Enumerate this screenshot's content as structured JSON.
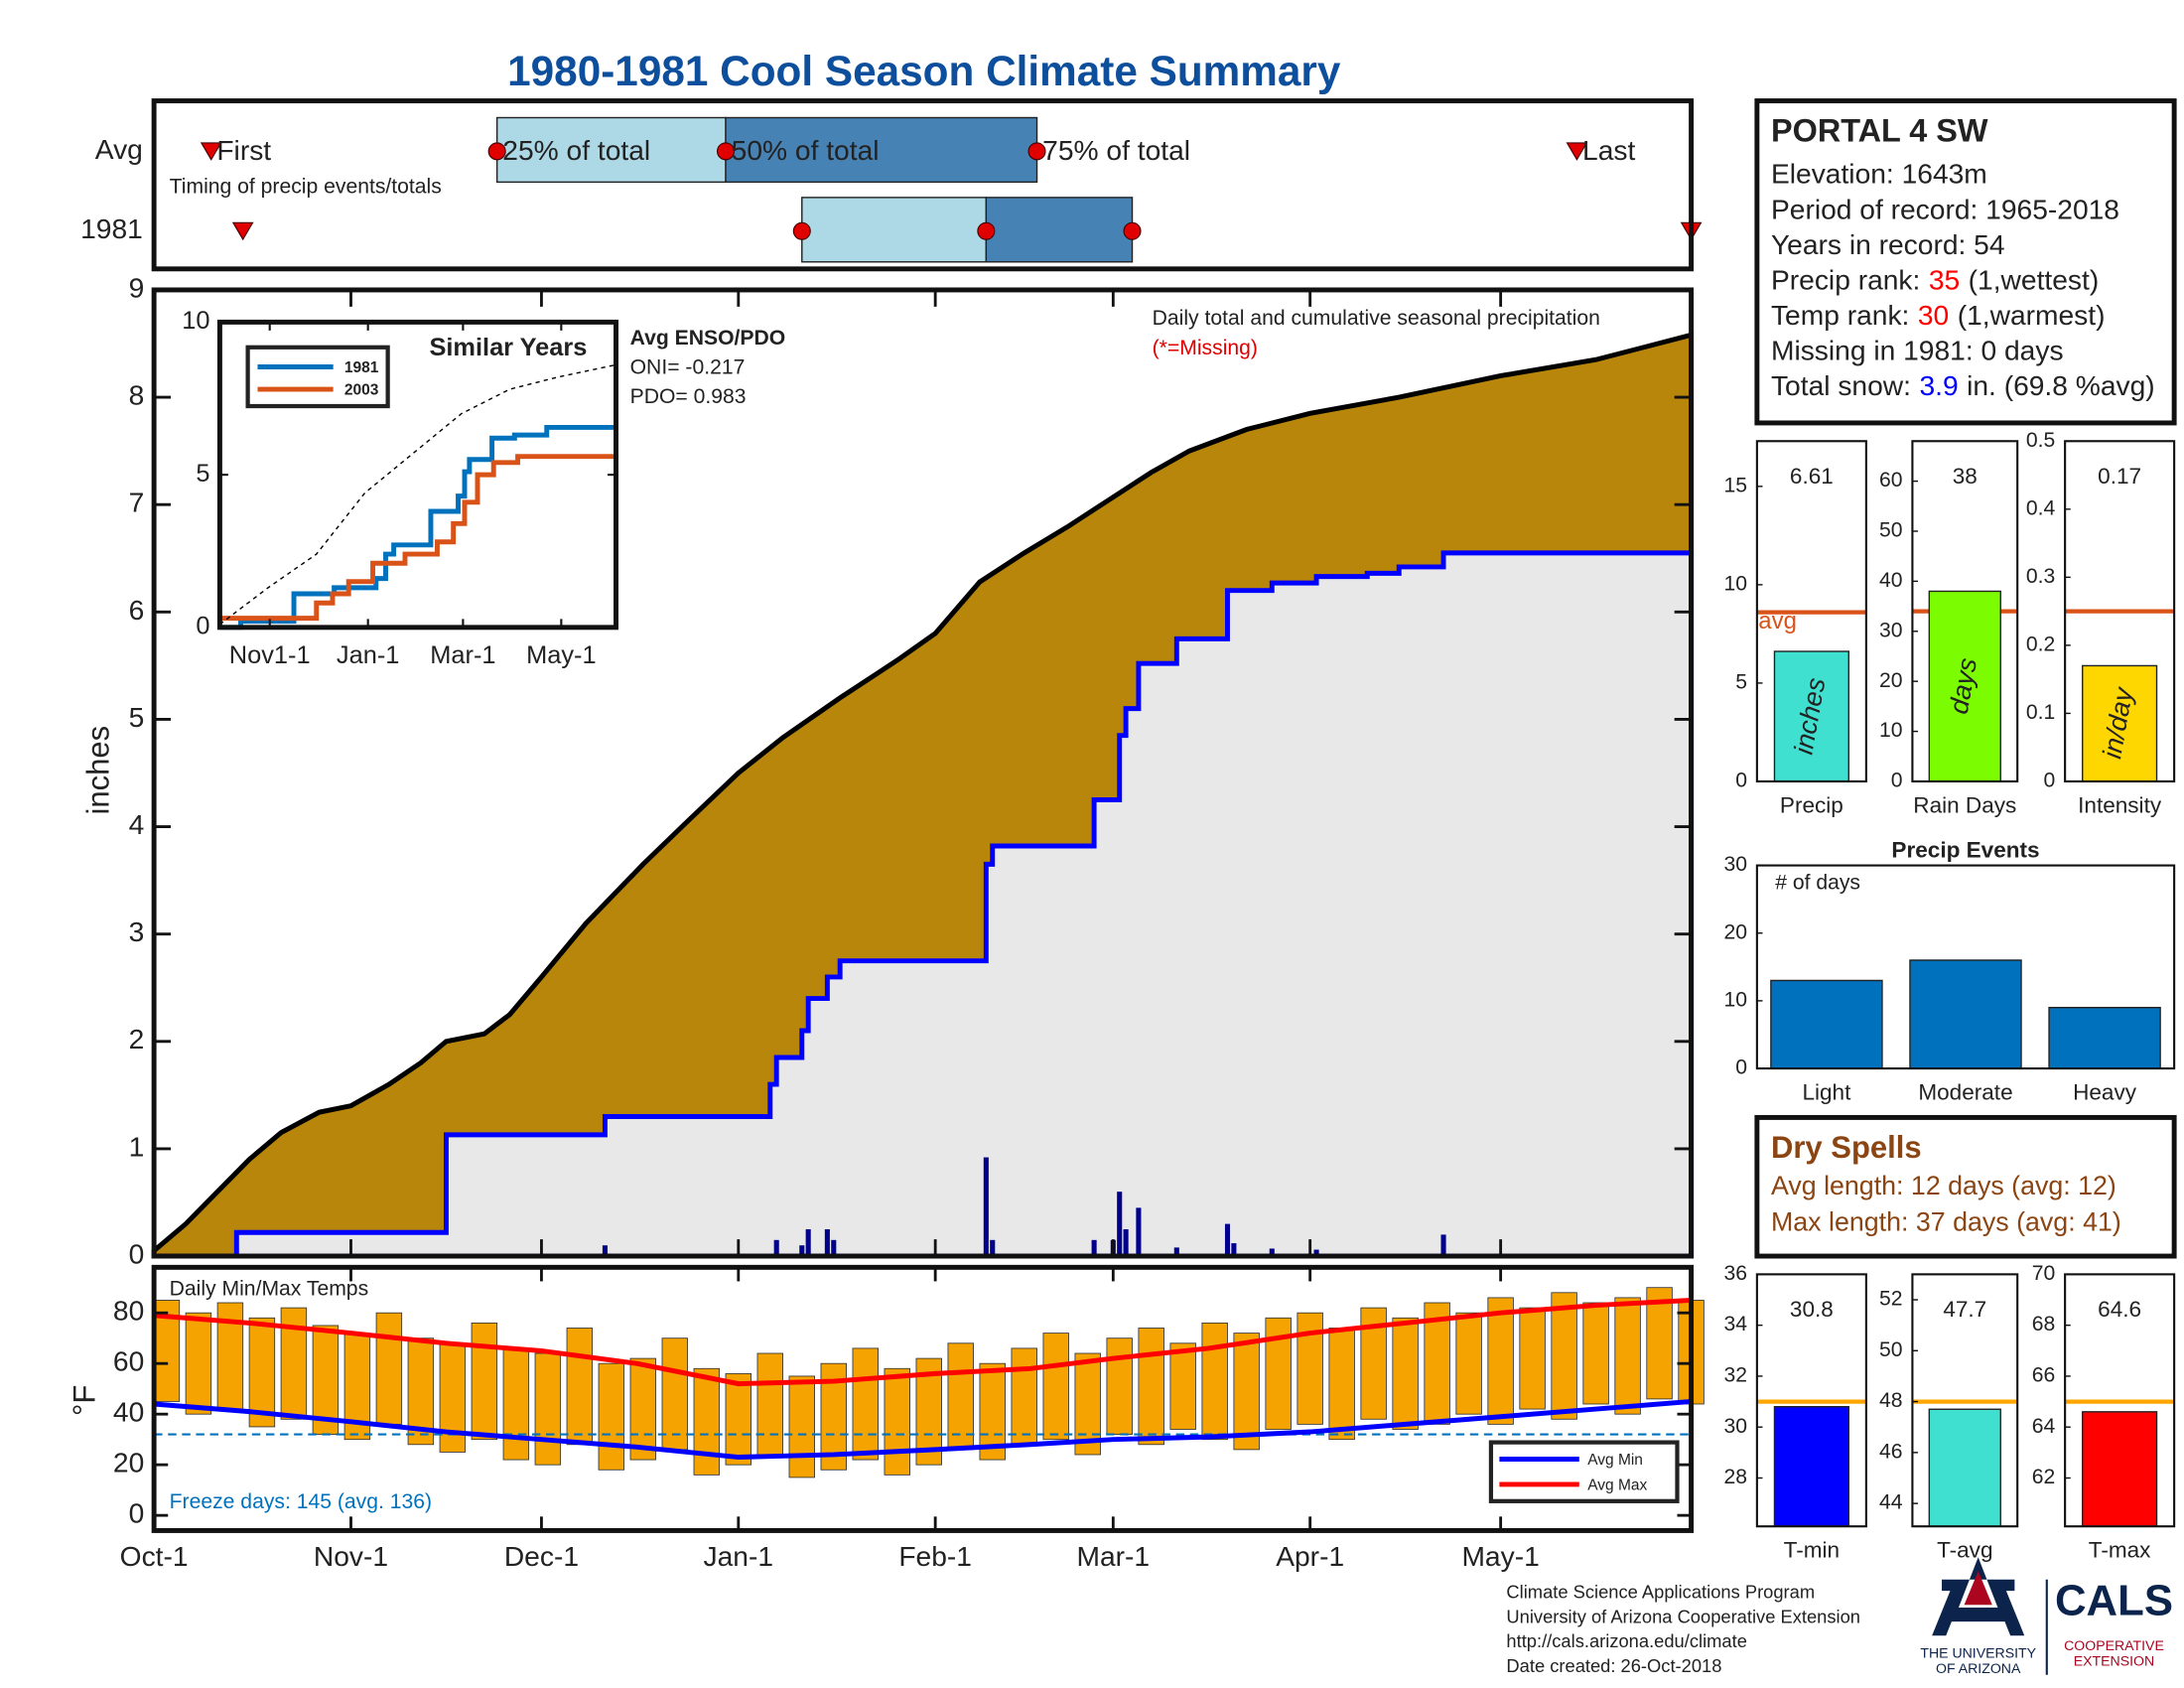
{
  "title": "1980-1981 Cool Season Climate Summary",
  "chart_data": [
    {
      "type": "timing",
      "xlim": [
        0,
        242
      ],
      "rows": [
        {
          "label": "Avg",
          "values": [
            9,
            54,
            90,
            139,
            224
          ]
        },
        {
          "label": "1981",
          "values": [
            14,
            102,
            131,
            154,
            242
          ]
        }
      ],
      "marker_labels": [
        "First",
        "25% of total",
        "50% of total",
        "75% of total",
        "Last"
      ],
      "note": "Timing of precip events/totals",
      "colors": [
        "#add8e6",
        "#4682b4"
      ],
      "marker_color": "#e00000"
    },
    {
      "type": "area",
      "xlim": [
        0,
        242
      ],
      "ylim": [
        0,
        9
      ],
      "yticks": [
        0,
        1,
        2,
        3,
        4,
        5,
        6,
        7,
        8,
        9
      ],
      "ylabel": "inches",
      "annotation": "Daily total and cumulative seasonal precipitation",
      "missing_note": "(*=Missing)",
      "series": [
        {
          "x": [
            0,
            5,
            10,
            15,
            20,
            26,
            31,
            37,
            42,
            46,
            52,
            56,
            61,
            68,
            77,
            84,
            92,
            99,
            108,
            117,
            123,
            130,
            137,
            144,
            151,
            157,
            163,
            172,
            182,
            196,
            212,
            227,
            242
          ],
          "values": [
            0.05,
            0.3,
            0.6,
            0.9,
            1.15,
            1.34,
            1.4,
            1.6,
            1.8,
            2.0,
            2.07,
            2.25,
            2.6,
            3.1,
            3.65,
            4.05,
            4.5,
            4.83,
            5.2,
            5.55,
            5.8,
            6.28,
            6.55,
            6.8,
            7.07,
            7.3,
            7.5,
            7.7,
            7.85,
            8.0,
            8.2,
            8.35,
            8.58
          ],
          "color": "#000000",
          "fill": "#b8860b"
        },
        {
          "x": [
            0,
            13,
            46,
            71,
            97,
            98,
            102,
            103,
            106,
            108,
            131,
            132,
            148,
            152,
            153,
            155,
            161,
            169,
            176,
            183,
            191,
            196,
            203,
            242
          ],
          "values": [
            0,
            0.22,
            1.13,
            1.3,
            1.6,
            1.85,
            2.1,
            2.4,
            2.6,
            2.75,
            3.65,
            3.82,
            4.25,
            4.85,
            5.1,
            5.52,
            5.75,
            6.2,
            6.27,
            6.33,
            6.36,
            6.42,
            6.55,
            6.55
          ],
          "color": "#0000ff",
          "fill": "#e8e8e8",
          "step": true
        }
      ],
      "daily": {
        "x": [
          71,
          98,
          102,
          103,
          106,
          107,
          131,
          132,
          148,
          151,
          152,
          153,
          155,
          161,
          169,
          170,
          176,
          183,
          203
        ],
        "values": [
          0.1,
          0.15,
          0.1,
          0.25,
          0.25,
          0.15,
          0.92,
          0.15,
          0.15,
          0.15,
          0.6,
          0.25,
          0.45,
          0.08,
          0.3,
          0.12,
          0.07,
          0.06,
          0.2
        ],
        "color": "#00008b"
      }
    },
    {
      "type": "line",
      "title": "Similar Years",
      "xlim": [
        0,
        246
      ],
      "ylim": [
        0,
        10
      ],
      "yticks": [
        0,
        5,
        10
      ],
      "xticks": [
        {
          "value": 31,
          "label": "Nov1-1"
        },
        {
          "value": 92,
          "label": "Jan-1"
        },
        {
          "value": 151,
          "label": "Mar-1"
        },
        {
          "value": 212,
          "label": "May-1"
        }
      ],
      "series": [
        {
          "name": "1981",
          "color": "#0072bd",
          "step": true,
          "x": [
            0,
            13,
            46,
            71,
            97,
            103,
            108,
            131,
            148,
            152,
            155,
            169,
            183,
            203,
            246
          ],
          "values": [
            0,
            0.2,
            1.1,
            1.3,
            1.6,
            2.4,
            2.7,
            3.8,
            4.3,
            5.1,
            5.5,
            6.2,
            6.3,
            6.55,
            6.55
          ]
        },
        {
          "name": "2003",
          "color": "#d95319",
          "step": true,
          "x": [
            0,
            55,
            60,
            70,
            80,
            95,
            115,
            135,
            145,
            152,
            160,
            170,
            185,
            246
          ],
          "values": [
            0.3,
            0.3,
            0.8,
            1.1,
            1.5,
            2.1,
            2.4,
            2.8,
            3.4,
            4.1,
            5.0,
            5.4,
            5.6,
            5.64
          ]
        },
        {
          "color": "#000000",
          "dash": true,
          "x": [
            0,
            30,
            60,
            90,
            120,
            150,
            180,
            210,
            246
          ],
          "values": [
            0.1,
            1.3,
            2.4,
            4.4,
            5.7,
            7.0,
            7.8,
            8.2,
            8.6
          ]
        }
      ],
      "notes": [
        "Avg ENSO/PDO",
        "ONI= -0.217",
        "PDO= 0.983"
      ]
    },
    {
      "type": "range",
      "title": "Daily Min/Max Temps",
      "ylabel": "°F",
      "xlim": [
        0,
        242
      ],
      "ylim": [
        -6,
        98
      ],
      "yticks": [
        0,
        20,
        40,
        60,
        80
      ],
      "xticks": [
        {
          "value": 0,
          "label": "Oct-1"
        },
        {
          "value": 31,
          "label": "Nov-1"
        },
        {
          "value": 61,
          "label": "Dec-1"
        },
        {
          "value": 92,
          "label": "Jan-1"
        },
        {
          "value": 123,
          "label": "Feb-1"
        },
        {
          "value": 151,
          "label": "Mar-1"
        },
        {
          "value": 182,
          "label": "Apr-1"
        },
        {
          "value": 212,
          "label": "May-1"
        }
      ],
      "x": [
        0,
        5,
        10,
        15,
        20,
        25,
        30,
        35,
        40,
        45,
        50,
        55,
        60,
        65,
        70,
        75,
        80,
        85,
        90,
        95,
        100,
        105,
        110,
        115,
        120,
        125,
        130,
        135,
        140,
        145,
        150,
        155,
        160,
        165,
        170,
        175,
        180,
        185,
        190,
        195,
        200,
        205,
        210,
        215,
        220,
        225,
        230,
        235,
        240
      ],
      "high": [
        85,
        80,
        84,
        78,
        82,
        75,
        72,
        80,
        70,
        68,
        76,
        66,
        64,
        74,
        60,
        62,
        70,
        58,
        56,
        64,
        55,
        60,
        66,
        58,
        62,
        68,
        60,
        66,
        72,
        64,
        70,
        74,
        68,
        76,
        72,
        78,
        80,
        74,
        82,
        78,
        84,
        80,
        86,
        82,
        88,
        84,
        86,
        90,
        85
      ],
      "low": [
        45,
        40,
        42,
        35,
        38,
        32,
        30,
        36,
        28,
        25,
        30,
        22,
        20,
        28,
        18,
        22,
        26,
        16,
        20,
        24,
        15,
        18,
        22,
        16,
        20,
        26,
        22,
        28,
        30,
        24,
        32,
        28,
        34,
        30,
        26,
        34,
        36,
        30,
        38,
        34,
        36,
        40,
        36,
        42,
        38,
        44,
        40,
        46,
        44
      ],
      "color": "#f5a300",
      "series": [
        {
          "name": "Avg Min",
          "color": "#0000ff",
          "x": [
            0,
            15,
            31,
            46,
            61,
            76,
            92,
            107,
            123,
            138,
            151,
            166,
            182,
            197,
            212,
            227,
            242
          ],
          "values": [
            44,
            41,
            37,
            33,
            30,
            27,
            23,
            24,
            26,
            28,
            30,
            31,
            33,
            36,
            39,
            42,
            45
          ]
        },
        {
          "name": "Avg Max",
          "color": "#ff0000",
          "x": [
            0,
            15,
            31,
            46,
            61,
            76,
            92,
            107,
            123,
            138,
            151,
            166,
            182,
            197,
            212,
            227,
            242
          ],
          "values": [
            79,
            76,
            72,
            68,
            65,
            60,
            52,
            53,
            56,
            58,
            62,
            66,
            72,
            76,
            80,
            83,
            85
          ]
        }
      ],
      "freeze": {
        "value": 32,
        "label": "Freeze days: 145 (avg. 136)",
        "color": "#0072bd"
      }
    },
    {
      "type": "bar",
      "categories": [
        "Precip"
      ],
      "values": [
        6.61
      ],
      "color": "#40e0d0",
      "bar_label": "inches",
      "print_values": true,
      "avg": 8.6,
      "avg_label": "avg",
      "avg_color": "#d95319",
      "ylim": [
        0,
        17.3
      ],
      "yticks": [
        0,
        5,
        10,
        15
      ]
    },
    {
      "type": "bar",
      "categories": [
        "Rain Days"
      ],
      "values": [
        38
      ],
      "color": "#7cfc00",
      "bar_label": "days",
      "print_values": true,
      "avg": 34,
      "avg_color": "#d95319",
      "ylim": [
        0,
        68
      ],
      "yticks": [
        0,
        10,
        20,
        30,
        40,
        50,
        60
      ]
    },
    {
      "type": "bar",
      "categories": [
        "Intensity"
      ],
      "values": [
        0.17
      ],
      "color": "#ffd700",
      "bar_label": "in/day",
      "print_values": true,
      "avg": 0.25,
      "avg_color": "#d95319",
      "ylim": [
        0,
        0.5
      ],
      "yticks": [
        0,
        0.1,
        0.2,
        0.3,
        0.4,
        0.5
      ]
    },
    {
      "type": "bar",
      "title": "Precip Events",
      "note": "# of days",
      "categories": [
        "Light",
        "Moderate",
        "Heavy"
      ],
      "values": [
        13,
        16,
        9
      ],
      "color": "#0071bc",
      "ylim": [
        0,
        30
      ],
      "yticks": [
        0,
        10,
        20,
        30
      ]
    },
    {
      "type": "bar",
      "categories": [
        "T-min"
      ],
      "values": [
        30.8
      ],
      "color": "#0000ff",
      "print_values": true,
      "avg": 31,
      "avg_color": "#ffa500",
      "ylim": [
        26.1,
        36
      ],
      "yticks": [
        28,
        30,
        32,
        34,
        36
      ]
    },
    {
      "type": "bar",
      "categories": [
        "T-avg"
      ],
      "values": [
        47.7
      ],
      "color": "#40e0d0",
      "print_values": true,
      "avg": 48,
      "avg_color": "#ffa500",
      "ylim": [
        43.1,
        53
      ],
      "yticks": [
        44,
        46,
        48,
        50,
        52
      ]
    },
    {
      "type": "bar",
      "categories": [
        "T-max"
      ],
      "values": [
        64.6
      ],
      "color": "#ff0000",
      "print_values": true,
      "avg": 65,
      "avg_color": "#ffa500",
      "ylim": [
        60.1,
        70
      ],
      "yticks": [
        62,
        64,
        66,
        68,
        70
      ]
    }
  ],
  "station": {
    "name": "PORTAL 4 SW",
    "lines": [
      {
        "parts": [
          "Elevation: 1643m"
        ]
      },
      {
        "parts": [
          "Period of record: 1965-2018"
        ]
      },
      {
        "parts": [
          "Years in record: 54"
        ]
      },
      {
        "parts": [
          "Precip rank:",
          "35",
          "(1,wettest)"
        ],
        "highlight": 1,
        "color": "#ff0000"
      },
      {
        "parts": [
          "Temp rank:",
          "30",
          "(1,warmest)"
        ],
        "highlight": 1,
        "color": "#ff0000"
      },
      {
        "parts": [
          "Missing in 1981: 0 days"
        ]
      },
      {
        "parts": [
          "Total snow:",
          "3.9",
          "in. (69.8 %avg)"
        ],
        "highlight": 1,
        "color": "#0000ff"
      }
    ]
  },
  "dry_spells": {
    "title": "Dry Spells",
    "lines": [
      "Avg length: 12 days (avg: 12)",
      "Max length: 37 days (avg: 41)"
    ],
    "color": "#8b4513"
  },
  "footer": [
    "Climate Science Applications Program",
    "University of Arizona Cooperative Extension",
    "http://cals.arizona.edu/climate",
    " Date created: 26-Oct-2018"
  ],
  "logo": {
    "university": [
      "THE UNIVERSITY",
      "OF ARIZONA"
    ],
    "cals": "CALS",
    "extension": [
      "COOPERATIVE",
      "EXTENSION"
    ]
  }
}
